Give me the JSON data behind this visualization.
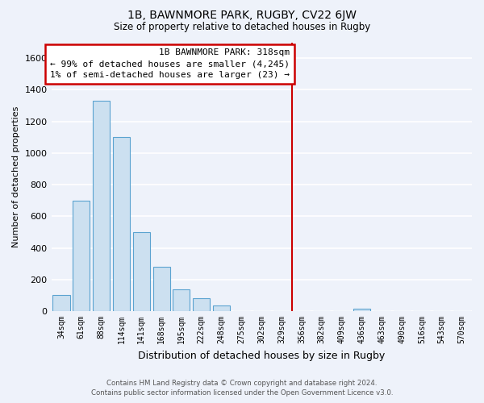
{
  "title": "1B, BAWNMORE PARK, RUGBY, CV22 6JW",
  "subtitle": "Size of property relative to detached houses in Rugby",
  "xlabel": "Distribution of detached houses by size in Rugby",
  "ylabel": "Number of detached properties",
  "bar_color": "#cce0f0",
  "bar_edge_color": "#5ba3d0",
  "background_color": "#eef2fa",
  "grid_color": "#ffffff",
  "bins": [
    "34sqm",
    "61sqm",
    "88sqm",
    "114sqm",
    "141sqm",
    "168sqm",
    "195sqm",
    "222sqm",
    "248sqm",
    "275sqm",
    "302sqm",
    "329sqm",
    "356sqm",
    "382sqm",
    "409sqm",
    "436sqm",
    "463sqm",
    "490sqm",
    "516sqm",
    "543sqm",
    "570sqm"
  ],
  "values": [
    100,
    700,
    1330,
    1100,
    500,
    280,
    140,
    80,
    35,
    0,
    0,
    0,
    0,
    0,
    0,
    15,
    0,
    0,
    0,
    0,
    0
  ],
  "ylim": [
    0,
    1700
  ],
  "yticks": [
    0,
    200,
    400,
    600,
    800,
    1000,
    1200,
    1400,
    1600
  ],
  "vline_x": 11.5,
  "vline_color": "#cc0000",
  "annotation_title": "1B BAWNMORE PARK: 318sqm",
  "annotation_line1": "← 99% of detached houses are smaller (4,245)",
  "annotation_line2": "1% of semi-detached houses are larger (23) →",
  "annotation_box_color": "#ffffff",
  "annotation_box_edge": "#cc0000",
  "footer1": "Contains HM Land Registry data © Crown copyright and database right 2024.",
  "footer2": "Contains public sector information licensed under the Open Government Licence v3.0."
}
